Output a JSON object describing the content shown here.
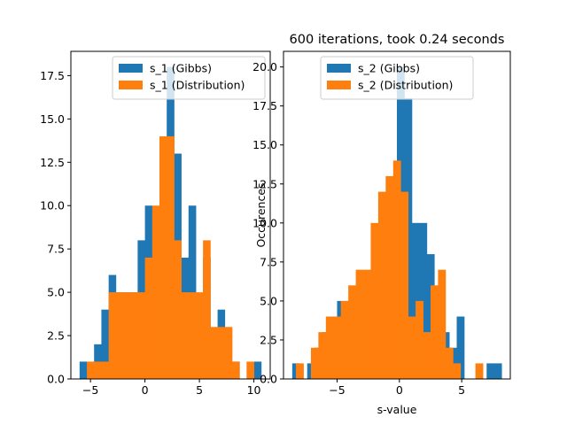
{
  "colors": {
    "gibbs": "#1f77b4",
    "distribution": "#ff7f0e"
  },
  "chart_data": [
    {
      "type": "bar",
      "title": "",
      "xlabel": "",
      "ylabel": "",
      "xlim": [
        -6.8,
        11.5
      ],
      "ylim": [
        0,
        18.9
      ],
      "xticks": [
        -5,
        0,
        5,
        10
      ],
      "xtick_labels": [
        "−5",
        "0",
        "5",
        "10"
      ],
      "yticks": [
        0,
        2.5,
        5,
        7.5,
        10,
        12.5,
        15,
        17.5
      ],
      "ytick_labels": [
        "0.0",
        "2.5",
        "5.0",
        "7.5",
        "10.0",
        "12.5",
        "15.0",
        "17.5"
      ],
      "legend": {
        "location": "top-right"
      },
      "series": [
        {
          "name": "s_1 (Gibbs)",
          "color_key": "gibbs",
          "bin_edges": [
            -6.0,
            -5.33,
            -4.67,
            -4.0,
            -3.33,
            -2.67,
            -2.0,
            -1.33,
            -0.67,
            0.0,
            0.67,
            1.33,
            2.0,
            2.67,
            3.33,
            4.0,
            4.67,
            5.33,
            6.0,
            6.67,
            7.33,
            8.0,
            8.67,
            9.33,
            10.0,
            10.67
          ],
          "counts": [
            1,
            0,
            2,
            4,
            6,
            5,
            5,
            5,
            8,
            10,
            8,
            9,
            18,
            13,
            7,
            10,
            3,
            7,
            2,
            4,
            0,
            1,
            0,
            0,
            1
          ]
        },
        {
          "name": "s_1 (Distribution)",
          "color_key": "distribution",
          "bin_edges": [
            -5.33,
            -4.67,
            -4.0,
            -3.33,
            -2.67,
            -2.0,
            -1.33,
            -0.67,
            0.0,
            0.67,
            1.33,
            2.0,
            2.67,
            3.33,
            4.0,
            4.67,
            5.33,
            6.0,
            6.67,
            7.33,
            8.0,
            8.67,
            9.33,
            10.0,
            10.67
          ],
          "counts": [
            1,
            1,
            1,
            5,
            5,
            5,
            5,
            5,
            7,
            10,
            14,
            14,
            8,
            5,
            5,
            5,
            8,
            3,
            3,
            3,
            1,
            0,
            1,
            0
          ]
        }
      ]
    },
    {
      "type": "bar",
      "title": "600 iterations, took 0.24 seconds",
      "xlabel": "s-value",
      "ylabel": "Occurences",
      "xlim": [
        -9.3,
        8.9
      ],
      "ylim": [
        0,
        21
      ],
      "xticks": [
        -5,
        0,
        5
      ],
      "xtick_labels": [
        "−5",
        "0",
        "5"
      ],
      "yticks": [
        0,
        2.5,
        5,
        7.5,
        10,
        12.5,
        15,
        17.5,
        20
      ],
      "ytick_labels": [
        "0.0",
        "2.5",
        "5.0",
        "7.5",
        "10.0",
        "12.5",
        "15.0",
        "17.5",
        "20.0"
      ],
      "legend": {
        "location": "top-center"
      },
      "series": [
        {
          "name": "s_2 (Gibbs)",
          "color_key": "gibbs",
          "bin_edges": [
            -8.6,
            -8.0,
            -7.4,
            -6.8,
            -6.2,
            -5.6,
            -5.0,
            -4.4,
            -3.8,
            -3.2,
            -2.6,
            -2.0,
            -1.4,
            -0.8,
            -0.2,
            0.4,
            1.0,
            1.6,
            2.2,
            2.8,
            3.4,
            4.0,
            4.6,
            5.2,
            5.8,
            6.4,
            7.0,
            7.6,
            8.2
          ],
          "counts": [
            1,
            0,
            1,
            2,
            3,
            4,
            5,
            5,
            5,
            5,
            6,
            8,
            7,
            12,
            20,
            18,
            10,
            10,
            8,
            4,
            3,
            2,
            4,
            0,
            0,
            0,
            1,
            1
          ]
        },
        {
          "name": "s_2 (Distribution)",
          "color_key": "distribution",
          "bin_edges": [
            -8.3,
            -7.7,
            -7.1,
            -6.5,
            -5.9,
            -5.3,
            -4.7,
            -4.1,
            -3.5,
            -2.9,
            -2.3,
            -1.7,
            -1.1,
            -0.5,
            0.1,
            0.7,
            1.3,
            1.9,
            2.5,
            3.1,
            3.7,
            4.3,
            4.9,
            5.5,
            6.1,
            6.7,
            7.3
          ],
          "counts": [
            1,
            0,
            2,
            3,
            4,
            4,
            5,
            6,
            7,
            7,
            10,
            12,
            13,
            14,
            12,
            4,
            5,
            3,
            6,
            7,
            2,
            1,
            0,
            0,
            1,
            0
          ]
        }
      ]
    }
  ]
}
